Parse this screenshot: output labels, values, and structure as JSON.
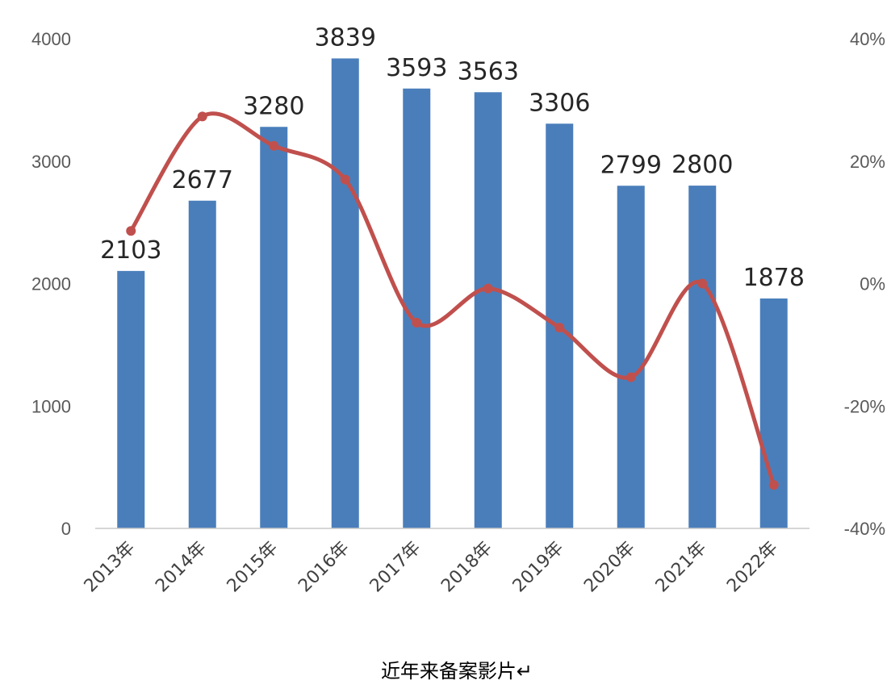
{
  "chart_data": {
    "type": "bar+line",
    "title": "",
    "xlabel": "近年来备案影片↵",
    "categories": [
      "2013年",
      "2014年",
      "2015年",
      "2016年",
      "2017年",
      "2018年",
      "2019年",
      "2020年",
      "2021年",
      "2022年"
    ],
    "series": [
      {
        "type": "bar",
        "axis": "left",
        "values": [
          2103,
          2677,
          3280,
          3839,
          3593,
          3563,
          3306,
          2799,
          2800,
          1878
        ],
        "data_labels": [
          "2103",
          "2677",
          "3280",
          "3839",
          "3593",
          "3563",
          "3306",
          "2799",
          "2800",
          "1878"
        ],
        "color": "#4a7ebb"
      },
      {
        "type": "line",
        "axis": "right",
        "values": [
          8.6,
          27.3,
          22.5,
          17.0,
          -6.4,
          -0.8,
          -7.2,
          -15.3,
          0.0,
          -32.9
        ],
        "color": "#c0504d"
      }
    ],
    "y_left": {
      "ylim": [
        0,
        4000
      ],
      "ticks": [
        "0",
        "1000",
        "2000",
        "3000",
        "4000"
      ]
    },
    "y_right": {
      "ylim": [
        -40,
        40
      ],
      "ticks": [
        "-40%",
        "-20%",
        "0%",
        "20%",
        "40%"
      ]
    },
    "grid": false,
    "legend": "none"
  }
}
